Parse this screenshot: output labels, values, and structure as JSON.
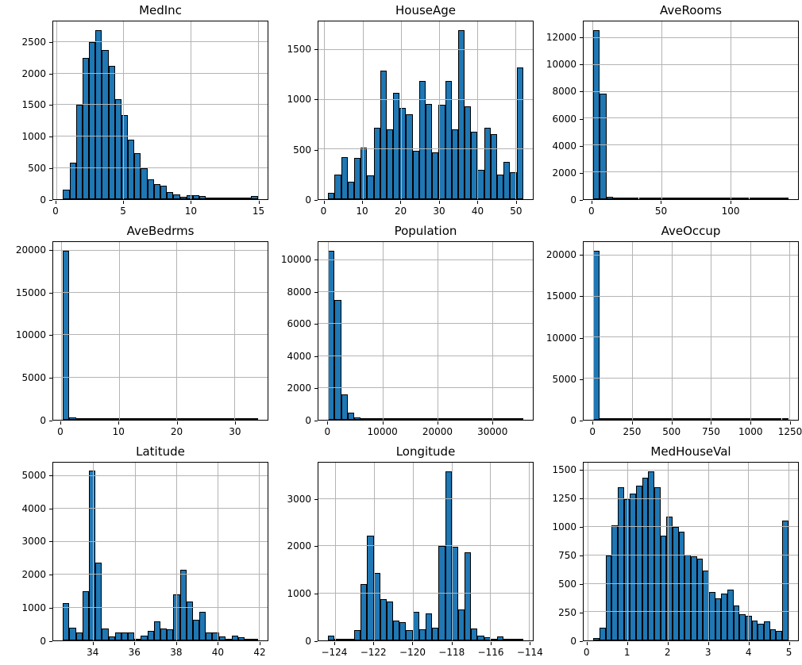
{
  "figure": {
    "background": "#ffffff",
    "bar_fill": "#1f77b4",
    "bar_edge": "#000000",
    "grid_color": "#b4b4b4",
    "axis_color": "#000000",
    "text_color": "#000000",
    "rows": 3,
    "cols": 3
  },
  "chart_data": [
    {
      "type": "bar",
      "subtype": "histogram",
      "title": "MedInc",
      "xlim": [
        -0.23,
        15.73
      ],
      "ylim": [
        0,
        2835
      ],
      "xticks": [
        0,
        5,
        10,
        15
      ],
      "xtick_labels": [
        "0",
        "5",
        "10",
        "15"
      ],
      "yticks": [
        0,
        500,
        1000,
        1500,
        2000,
        2500
      ],
      "bar_start": 0.5,
      "bin_width": 0.4833,
      "values": [
        150,
        580,
        1500,
        2250,
        2500,
        2700,
        2380,
        2130,
        1600,
        1340,
        950,
        730,
        500,
        320,
        240,
        210,
        120,
        80,
        40,
        60,
        60,
        45,
        15,
        15,
        15,
        15,
        10,
        10,
        10,
        50
      ],
      "grid": true,
      "legend": null
    },
    {
      "type": "bar",
      "subtype": "histogram",
      "title": "HouseAge",
      "xlim": [
        -1.55,
        54.55
      ],
      "ylim": [
        0,
        1785
      ],
      "xticks": [
        0,
        10,
        20,
        30,
        40,
        50
      ],
      "xtick_labels": [
        "0",
        "10",
        "20",
        "30",
        "40",
        "50"
      ],
      "yticks": [
        0,
        500,
        1000,
        1500
      ],
      "bar_start": 1.0,
      "bin_width": 1.7,
      "values": [
        60,
        250,
        420,
        175,
        415,
        520,
        240,
        715,
        1290,
        700,
        1065,
        915,
        850,
        485,
        1190,
        960,
        470,
        945,
        1185,
        700,
        1700,
        930,
        680,
        295,
        720,
        650,
        245,
        375,
        270,
        1320
      ],
      "grid": true,
      "legend": null
    },
    {
      "type": "bar",
      "subtype": "histogram",
      "title": "AveRooms",
      "xlim": [
        -6.2,
        149.0
      ],
      "ylim": [
        0,
        13230
      ],
      "xticks": [
        0,
        50,
        100
      ],
      "xtick_labels": [
        "0",
        "50",
        "100"
      ],
      "yticks": [
        0,
        2000,
        4000,
        6000,
        8000,
        10000,
        12000
      ],
      "bar_start": 0.85,
      "bin_width": 4.7,
      "values": [
        12600,
        7850,
        150,
        30,
        10,
        5,
        3,
        2,
        2,
        2,
        2,
        2,
        2,
        2,
        2,
        2,
        2,
        2,
        2,
        2,
        2,
        2,
        2,
        2,
        2,
        2,
        2,
        2,
        2,
        2
      ],
      "grid": true,
      "legend": null
    },
    {
      "type": "bar",
      "subtype": "histogram",
      "title": "AveBedrms",
      "xlim": [
        -1.35,
        35.75
      ],
      "ylim": [
        0,
        21000
      ],
      "xticks": [
        0,
        10,
        20,
        30
      ],
      "xtick_labels": [
        "0",
        "10",
        "20",
        "30"
      ],
      "yticks": [
        0,
        5000,
        10000,
        15000,
        20000
      ],
      "bar_start": 0.33,
      "bin_width": 1.125,
      "values": [
        19950,
        300,
        20,
        5,
        3,
        2,
        2,
        2,
        2,
        2,
        2,
        2,
        2,
        2,
        2,
        2,
        2,
        2,
        2,
        2,
        2,
        2,
        2,
        2,
        2,
        2,
        2,
        2,
        2,
        2
      ],
      "grid": true,
      "legend": null
    },
    {
      "type": "bar",
      "subtype": "histogram",
      "title": "Population",
      "xlim": [
        -1780,
        37465
      ],
      "ylim": [
        0,
        11130
      ],
      "xticks": [
        0,
        10000,
        20000,
        30000
      ],
      "xtick_labels": [
        "0",
        "10000",
        "20000",
        "30000"
      ],
      "yticks": [
        0,
        2000,
        4000,
        6000,
        8000,
        10000
      ],
      "bar_start": 3,
      "bin_width": 1189,
      "values": [
        10600,
        7500,
        1600,
        450,
        170,
        60,
        40,
        20,
        10,
        5,
        3,
        2,
        2,
        2,
        2,
        2,
        2,
        2,
        2,
        2,
        2,
        2,
        2,
        2,
        2,
        2,
        2,
        2,
        2,
        2
      ],
      "grid": true,
      "legend": null
    },
    {
      "type": "bar",
      "subtype": "histogram",
      "title": "AveOccup",
      "xlim": [
        -61,
        1305
      ],
      "ylim": [
        0,
        21630
      ],
      "xticks": [
        0,
        250,
        500,
        750,
        1000,
        1250
      ],
      "xtick_labels": [
        "0",
        "250",
        "500",
        "750",
        "1000",
        "1250"
      ],
      "yticks": [
        0,
        5000,
        10000,
        15000,
        20000
      ],
      "bar_start": 0.7,
      "bin_width": 41.4,
      "values": [
        20600,
        30,
        5,
        2,
        2,
        2,
        2,
        2,
        2,
        2,
        2,
        2,
        2,
        2,
        2,
        2,
        2,
        2,
        2,
        2,
        2,
        2,
        2,
        2,
        2,
        2,
        2,
        2,
        2,
        2
      ],
      "grid": true,
      "legend": null
    },
    {
      "type": "bar",
      "subtype": "histogram",
      "title": "Latitude",
      "xlim": [
        32.07,
        42.42
      ],
      "ylim": [
        0,
        5400
      ],
      "xticks": [
        34,
        36,
        38,
        40,
        42
      ],
      "xtick_labels": [
        "34",
        "36",
        "38",
        "40",
        "42"
      ],
      "yticks": [
        0,
        1000,
        2000,
        3000,
        4000,
        5000
      ],
      "bar_start": 32.54,
      "bin_width": 0.3137,
      "values": [
        1130,
        380,
        250,
        1490,
        5150,
        2370,
        350,
        120,
        230,
        230,
        230,
        50,
        150,
        300,
        590,
        350,
        340,
        1390,
        2150,
        1180,
        620,
        870,
        250,
        250,
        120,
        60,
        150,
        100,
        40,
        20
      ],
      "grid": true,
      "legend": null
    },
    {
      "type": "bar",
      "subtype": "histogram",
      "title": "Longitude",
      "xlim": [
        -124.85,
        -113.81
      ],
      "ylim": [
        0,
        3780
      ],
      "xticks": [
        -124,
        -122,
        -120,
        -118,
        -116,
        -114
      ],
      "xtick_labels": [
        "−124",
        "−122",
        "−120",
        "−118",
        "−116",
        "−114"
      ],
      "yticks": [
        0,
        1000,
        2000,
        3000
      ],
      "bar_start": -124.35,
      "bin_width": 0.3347,
      "values": [
        100,
        30,
        10,
        40,
        220,
        1190,
        2230,
        1440,
        880,
        820,
        430,
        390,
        220,
        600,
        230,
        580,
        270,
        2000,
        3600,
        1990,
        650,
        1880,
        260,
        100,
        60,
        30,
        90,
        10,
        5,
        20
      ],
      "grid": true,
      "legend": null
    },
    {
      "type": "bar",
      "subtype": "histogram",
      "title": "MedHouseVal",
      "xlim": [
        -0.0925,
        5.2425
      ],
      "ylim": [
        0,
        1570
      ],
      "xticks": [
        0,
        1,
        2,
        3,
        4,
        5
      ],
      "xtick_labels": [
        "0",
        "1",
        "2",
        "3",
        "4",
        "5"
      ],
      "yticks": [
        0,
        250,
        500,
        750,
        1000,
        1250,
        1500
      ],
      "bar_start": 0.15,
      "bin_width": 0.15156,
      "values": [
        20,
        110,
        750,
        1015,
        1350,
        1250,
        1295,
        1370,
        1440,
        1495,
        1355,
        925,
        1090,
        1000,
        960,
        755,
        745,
        725,
        620,
        425,
        370,
        415,
        450,
        310,
        230,
        215,
        175,
        150,
        165,
        95,
        85,
        1060
      ],
      "grid": true,
      "legend": null
    }
  ]
}
